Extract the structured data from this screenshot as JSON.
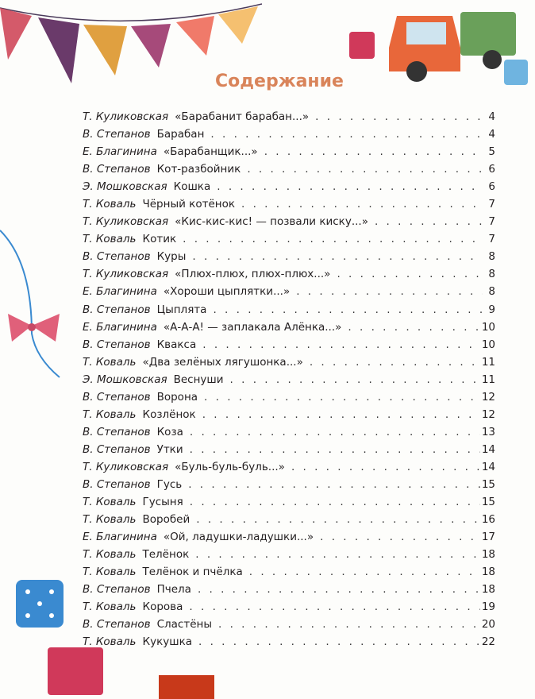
{
  "title": "Содержание",
  "colors": {
    "title": "#d9845a"
  },
  "entries": [
    {
      "author": "Т. Куликовская",
      "work": "«Барабанит барабан...»",
      "page": "4"
    },
    {
      "author": "В. Степанов",
      "work": "Барабан",
      "page": "4"
    },
    {
      "author": "Е. Благинина",
      "work": "«Барабанщик...»",
      "page": "5"
    },
    {
      "author": "В. Степанов",
      "work": "Кот-разбойник",
      "page": "6"
    },
    {
      "author": "Э. Мошковская",
      "work": "Кошка",
      "page": "6"
    },
    {
      "author": "Т. Коваль",
      "work": "Чёрный котёнок",
      "page": "7"
    },
    {
      "author": "Т. Куликовская",
      "work": "«Кис-кис-кис! — позвали киску...»",
      "page": "7"
    },
    {
      "author": "Т. Коваль",
      "work": "Котик",
      "page": "7"
    },
    {
      "author": "В. Степанов",
      "work": "Куры",
      "page": "8"
    },
    {
      "author": "Т. Куликовская",
      "work": "«Плюх-плюх, плюх-плюх...»",
      "page": "8"
    },
    {
      "author": "Е. Благинина",
      "work": "«Хороши цыплятки...»",
      "page": "8"
    },
    {
      "author": "В. Степанов",
      "work": "Цыплята",
      "page": "9"
    },
    {
      "author": "Е. Благинина",
      "work": "«А-А-А! — заплакала Алёнка...»",
      "page": "10"
    },
    {
      "author": "В. Степанов",
      "work": "Квакса",
      "page": "10"
    },
    {
      "author": "Т. Коваль",
      "work": "«Два зелёных лягушонка...»",
      "page": "11"
    },
    {
      "author": "Э. Мошковская",
      "work": "Веснуши",
      "page": "11"
    },
    {
      "author": "В. Степанов",
      "work": "Ворона",
      "page": "12"
    },
    {
      "author": "Т. Коваль",
      "work": "Козлёнок",
      "page": "12"
    },
    {
      "author": "В. Степанов",
      "work": "Коза",
      "page": "13"
    },
    {
      "author": "В. Степанов",
      "work": "Утки",
      "page": "14"
    },
    {
      "author": "Т. Куликовская",
      "work": "«Буль-буль-буль...»",
      "page": "14"
    },
    {
      "author": "В. Степанов",
      "work": "Гусь",
      "page": "15"
    },
    {
      "author": "Т. Коваль",
      "work": "Гусыня",
      "page": "15"
    },
    {
      "author": "Т. Коваль",
      "work": "Воробей",
      "page": "16"
    },
    {
      "author": "Е. Благинина",
      "work": "«Ой, ладушки-ладушки...»",
      "page": "17"
    },
    {
      "author": "Т. Коваль",
      "work": "Телёнок",
      "page": "18"
    },
    {
      "author": "Т. Коваль",
      "work": "Телёнок и пчёлка",
      "page": "18"
    },
    {
      "author": "В. Степанов",
      "work": "Пчела",
      "page": "18"
    },
    {
      "author": "Т. Коваль",
      "work": "Корова",
      "page": "19"
    },
    {
      "author": "В. Степанов",
      "work": "Сластёны",
      "page": "20"
    },
    {
      "author": "Т. Коваль",
      "work": "Кукушка",
      "page": "22"
    }
  ]
}
